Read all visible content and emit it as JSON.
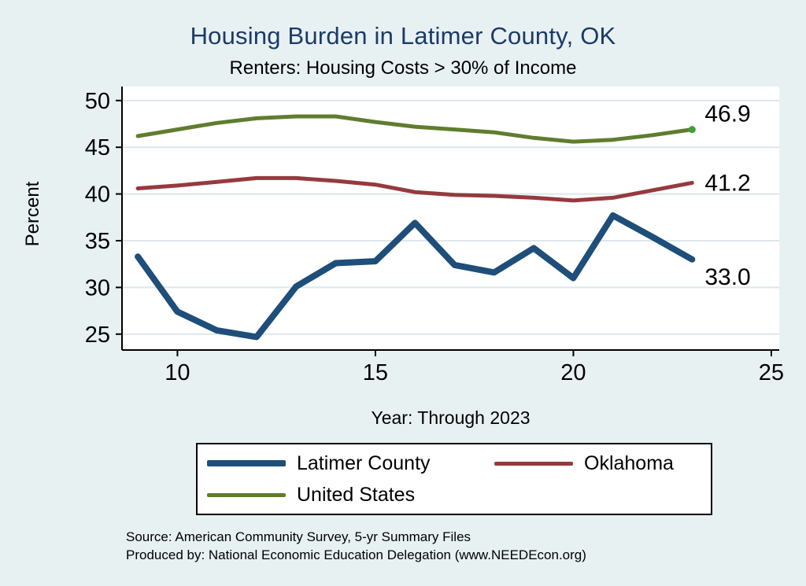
{
  "title": "Housing Burden in Latimer County, OK",
  "subtitle": "Renters: Housing Costs > 30% of Income",
  "source": {
    "line1": "Source: American Community Survey, 5-yr Summary Files",
    "line2": "Produced by: National Economic Education Delegation (www.NEEDEcon.org)"
  },
  "colors": {
    "background": "#e8f1f2",
    "title_text": "#1b3a6b",
    "plot_background": "#ffffff",
    "gridline": "#dbe7e9",
    "axis": "#000000"
  },
  "chart_data": {
    "type": "line",
    "title": "Housing Burden in Latimer County, OK",
    "subtitle": "Renters: Housing Costs > 30% of Income",
    "xlabel": "Year: Through 2023",
    "ylabel": "Percent",
    "x": [
      9,
      10,
      11,
      12,
      13,
      14,
      15,
      16,
      17,
      18,
      19,
      20,
      21,
      22,
      23
    ],
    "series": [
      {
        "name": "Latimer County",
        "color": "#1e4e79",
        "line_width": 8,
        "values": [
          33.3,
          27.4,
          25.4,
          24.7,
          30.1,
          32.6,
          32.8,
          36.9,
          32.4,
          31.6,
          34.2,
          31.0,
          37.7,
          35.4,
          33.0
        ],
        "end_label": "33.0"
      },
      {
        "name": "Oklahoma",
        "color": "#953a3e",
        "line_width": 5,
        "values": [
          40.6,
          40.9,
          41.3,
          41.7,
          41.7,
          41.4,
          41.0,
          40.2,
          39.9,
          39.8,
          39.6,
          39.3,
          39.6,
          40.4,
          41.2
        ],
        "end_label": "41.2"
      },
      {
        "name": "United States",
        "color": "#5f7d2e",
        "line_width": 5,
        "values": [
          46.2,
          46.9,
          47.6,
          48.1,
          48.3,
          48.3,
          47.7,
          47.2,
          46.9,
          46.6,
          46.0,
          45.6,
          45.8,
          46.3,
          46.9
        ],
        "end_label": "46.9"
      }
    ],
    "xticks": [
      10,
      15,
      20,
      25
    ],
    "yticks": [
      25,
      30,
      35,
      40,
      45,
      50
    ],
    "xlim": [
      8.6,
      25.2
    ],
    "ylim": [
      23.3,
      51.5
    ],
    "grid": "horizontal",
    "legend_position": "bottom",
    "end_dot_color": "#3e9e34"
  }
}
